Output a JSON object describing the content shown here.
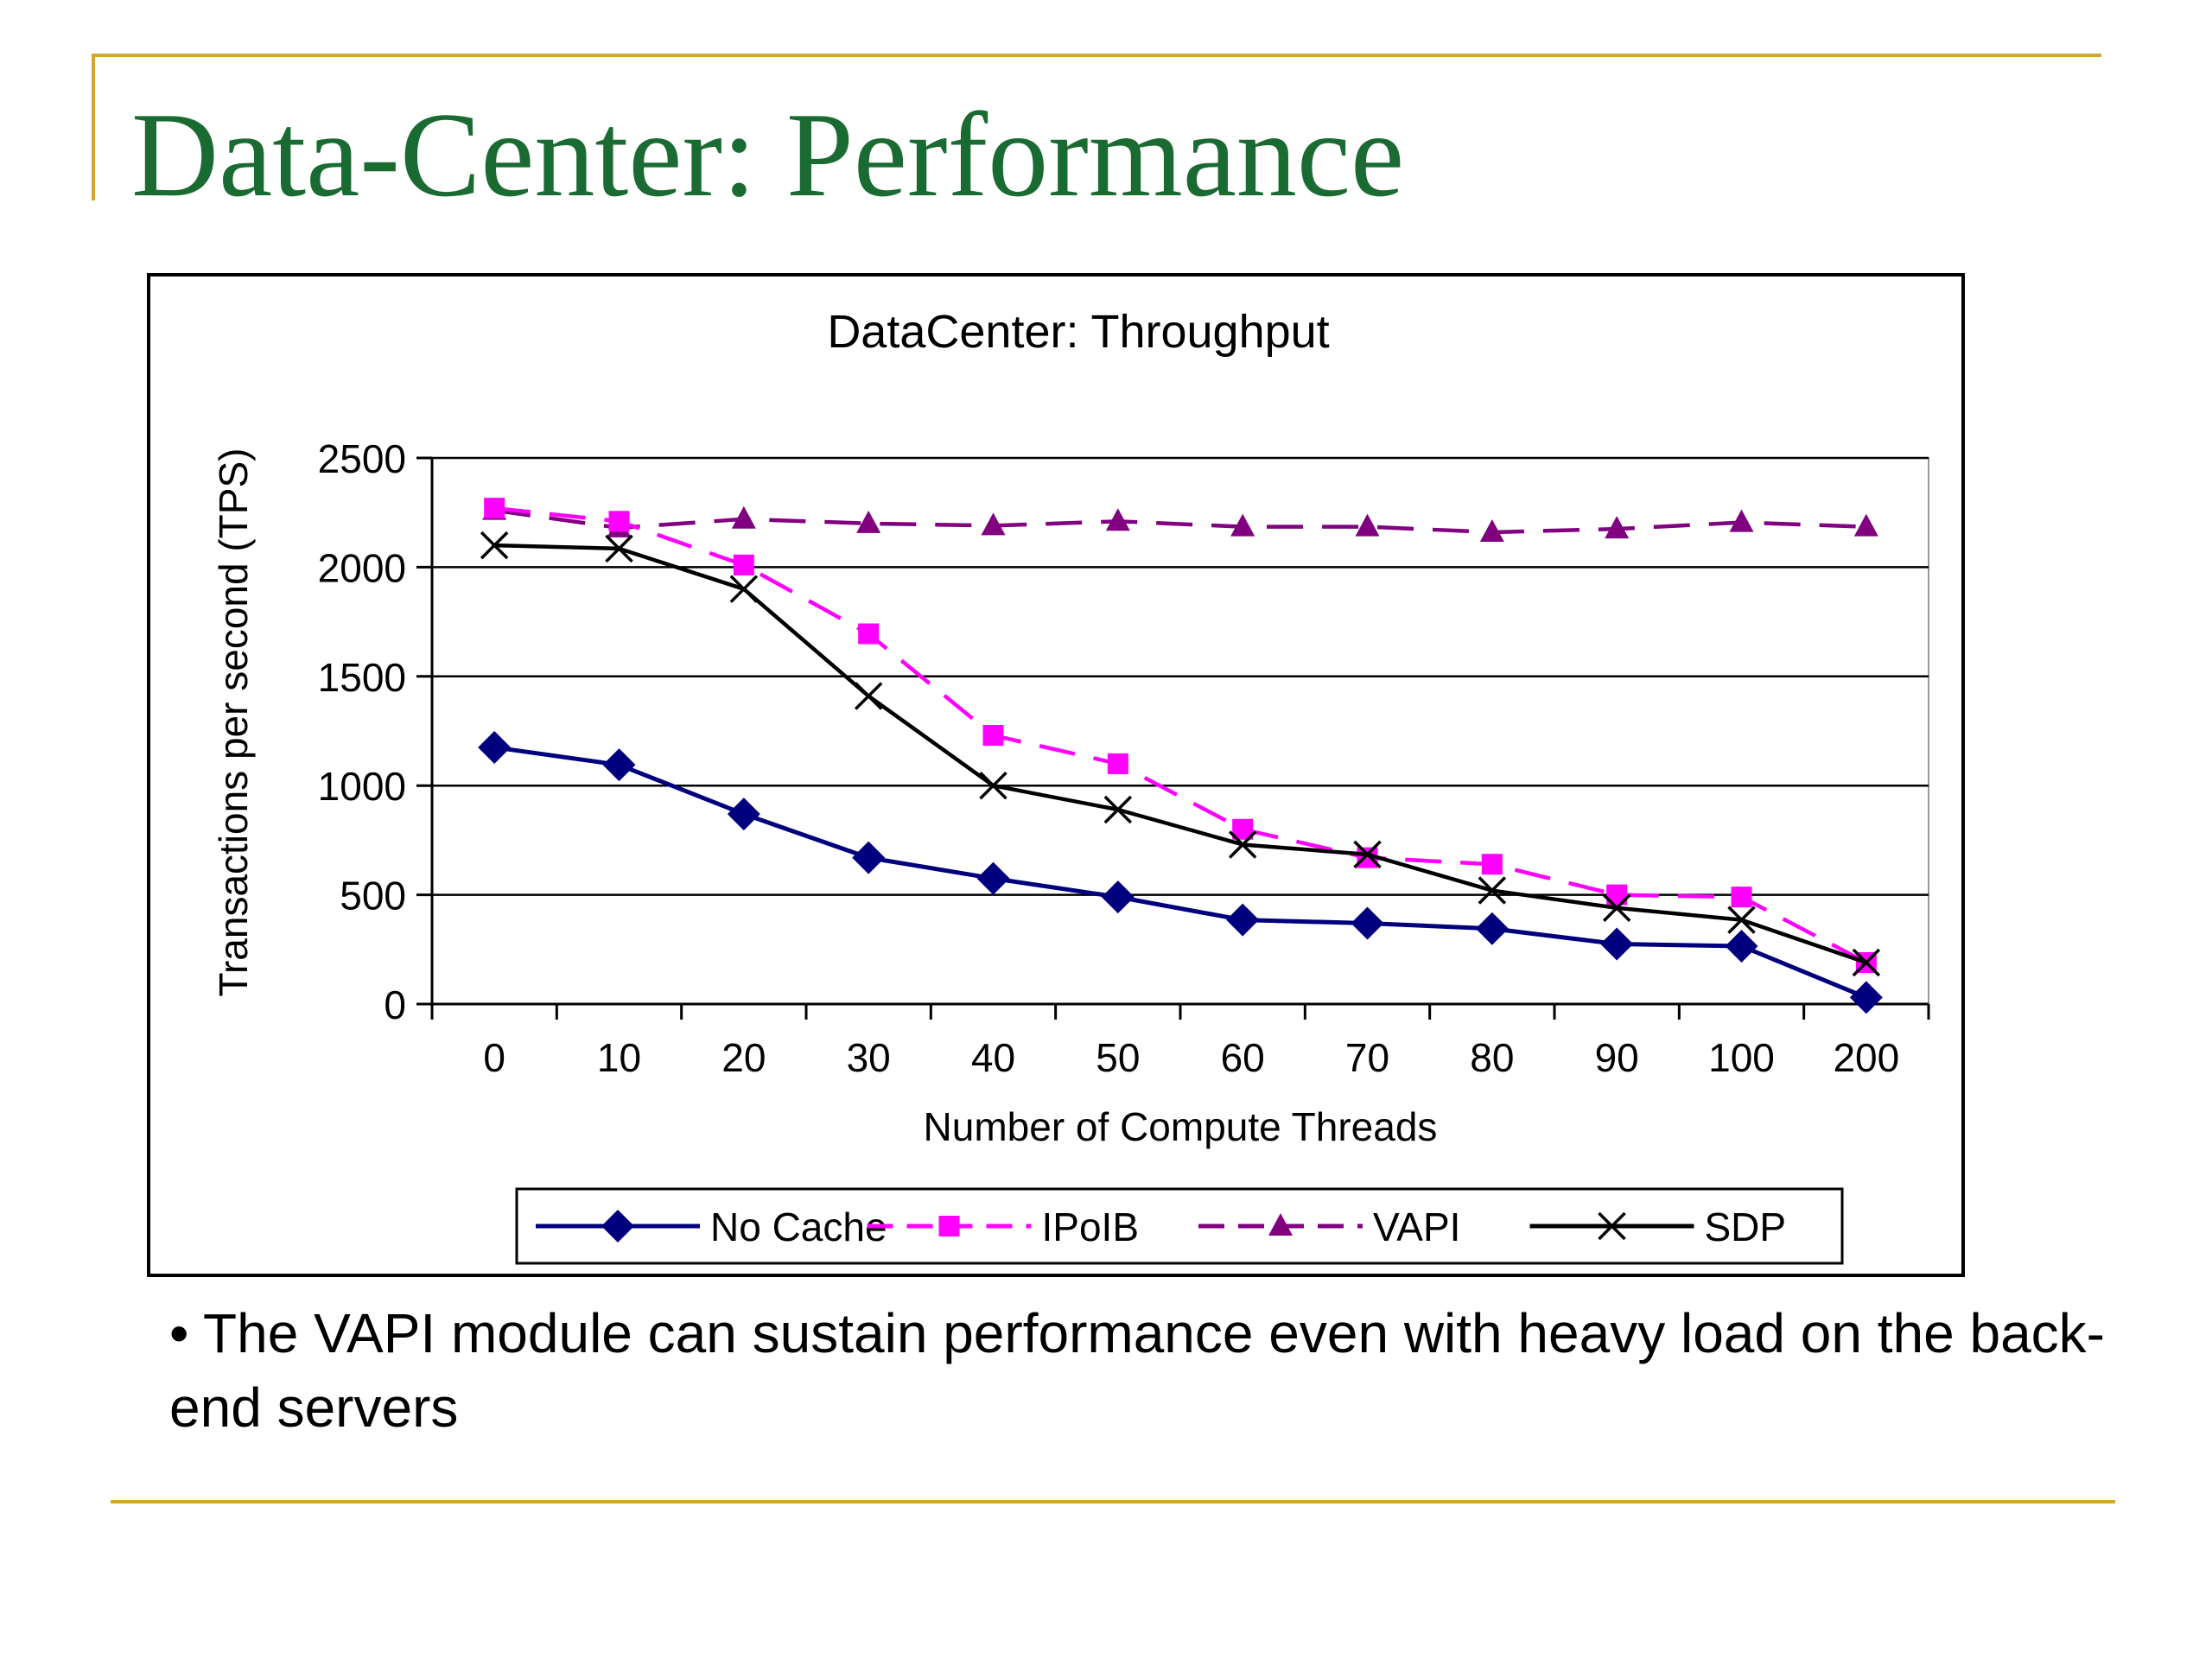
{
  "slide": {
    "title": "Data-Center: Performance",
    "bullet": "• The VAPI module can sustain performance even with heavy load on the back-end servers"
  },
  "colors": {
    "title": "#1a6b32",
    "rule": "#d4a72c"
  },
  "chart_data": {
    "type": "line",
    "title": "DataCenter: Throughput",
    "xlabel": "Number of Compute Threads",
    "ylabel": "Transactions per second (TPS)",
    "categories": [
      "0",
      "10",
      "20",
      "30",
      "40",
      "50",
      "60",
      "70",
      "80",
      "90",
      "100",
      "200"
    ],
    "ylim": [
      0,
      2500
    ],
    "yticks": [
      0,
      500,
      1000,
      1500,
      2000,
      2500
    ],
    "grid": true,
    "legend": "bottom",
    "series": [
      {
        "name": "No Cache",
        "color": "#00007f",
        "dash": "solid",
        "marker": "diamond",
        "values": [
          1175,
          1095,
          870,
          670,
          575,
          490,
          385,
          370,
          345,
          275,
          265,
          30
        ]
      },
      {
        "name": "IPoIB",
        "color": "#ff00ff",
        "dash": "dashed",
        "marker": "square",
        "values": [
          2270,
          2210,
          2010,
          1695,
          1230,
          1100,
          800,
          670,
          640,
          500,
          490,
          190
        ]
      },
      {
        "name": "VAPI",
        "color": "#800080",
        "dash": "dashed",
        "marker": "triangle",
        "values": [
          2260,
          2180,
          2220,
          2200,
          2190,
          2210,
          2185,
          2185,
          2160,
          2175,
          2205,
          2185
        ]
      },
      {
        "name": "SDP",
        "color": "#000000",
        "dash": "solid",
        "marker": "x",
        "values": [
          2100,
          2085,
          1900,
          1410,
          1000,
          890,
          730,
          685,
          520,
          440,
          385,
          190
        ]
      }
    ]
  }
}
